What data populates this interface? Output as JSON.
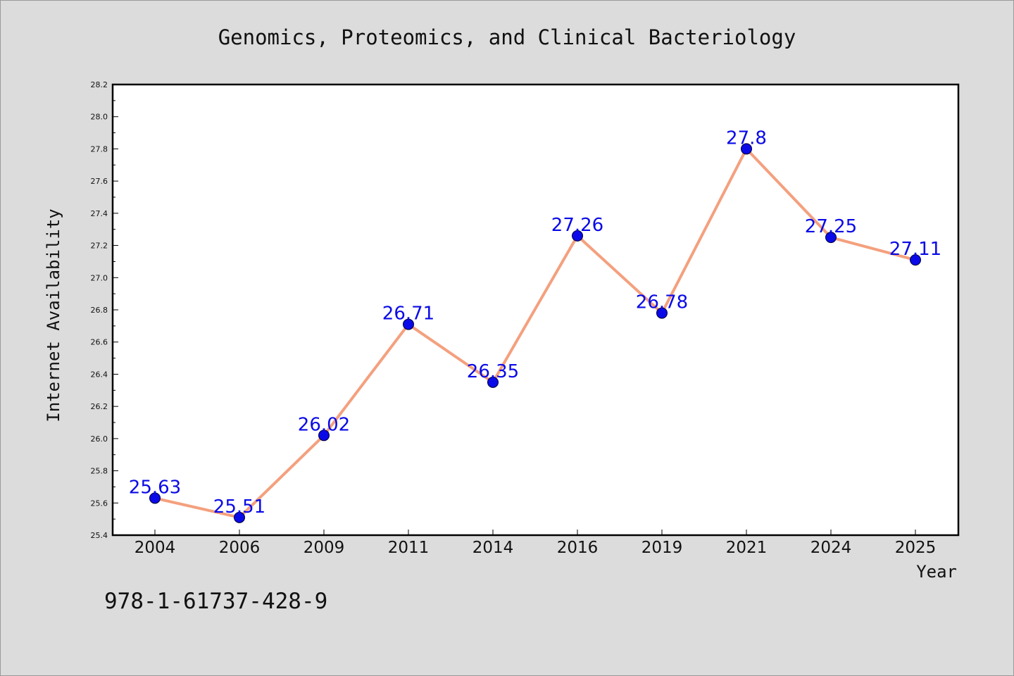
{
  "chart_data": {
    "type": "line",
    "title": "Genomics, Proteomics, and Clinical Bacteriology",
    "xlabel": "Year",
    "ylabel": "Internet Availability",
    "categories": [
      "2004",
      "2006",
      "2009",
      "2011",
      "2014",
      "2016",
      "2019",
      "2021",
      "2024",
      "2025"
    ],
    "series": [
      {
        "values": [
          25.63,
          25.51,
          26.02,
          26.71,
          26.35,
          27.26,
          26.78,
          27.8,
          27.25,
          27.11
        ],
        "data_labels": [
          "25.63",
          "25.51",
          "26.02",
          "26.71",
          "26.35",
          "27.26",
          "26.78",
          "27.8",
          "27.25",
          "27.11"
        ]
      }
    ],
    "ylim": [
      25.4,
      28.2
    ],
    "yticks": [
      "25.4",
      "25.6",
      "25.8",
      "26.0",
      "26.2",
      "26.4",
      "26.6",
      "26.8",
      "27.0",
      "27.2",
      "27.4",
      "27.6",
      "27.8",
      "28.0",
      "28.2"
    ],
    "grid": false,
    "legend": "none",
    "colors": {
      "line": "#f4a07e",
      "marker": "#0a0ae8",
      "data_label": "#0a0ae8",
      "plot_background": "#ffffff",
      "page_background": "#dcdcdc"
    }
  },
  "footer": {
    "isbn": "978-1-61737-428-9"
  }
}
